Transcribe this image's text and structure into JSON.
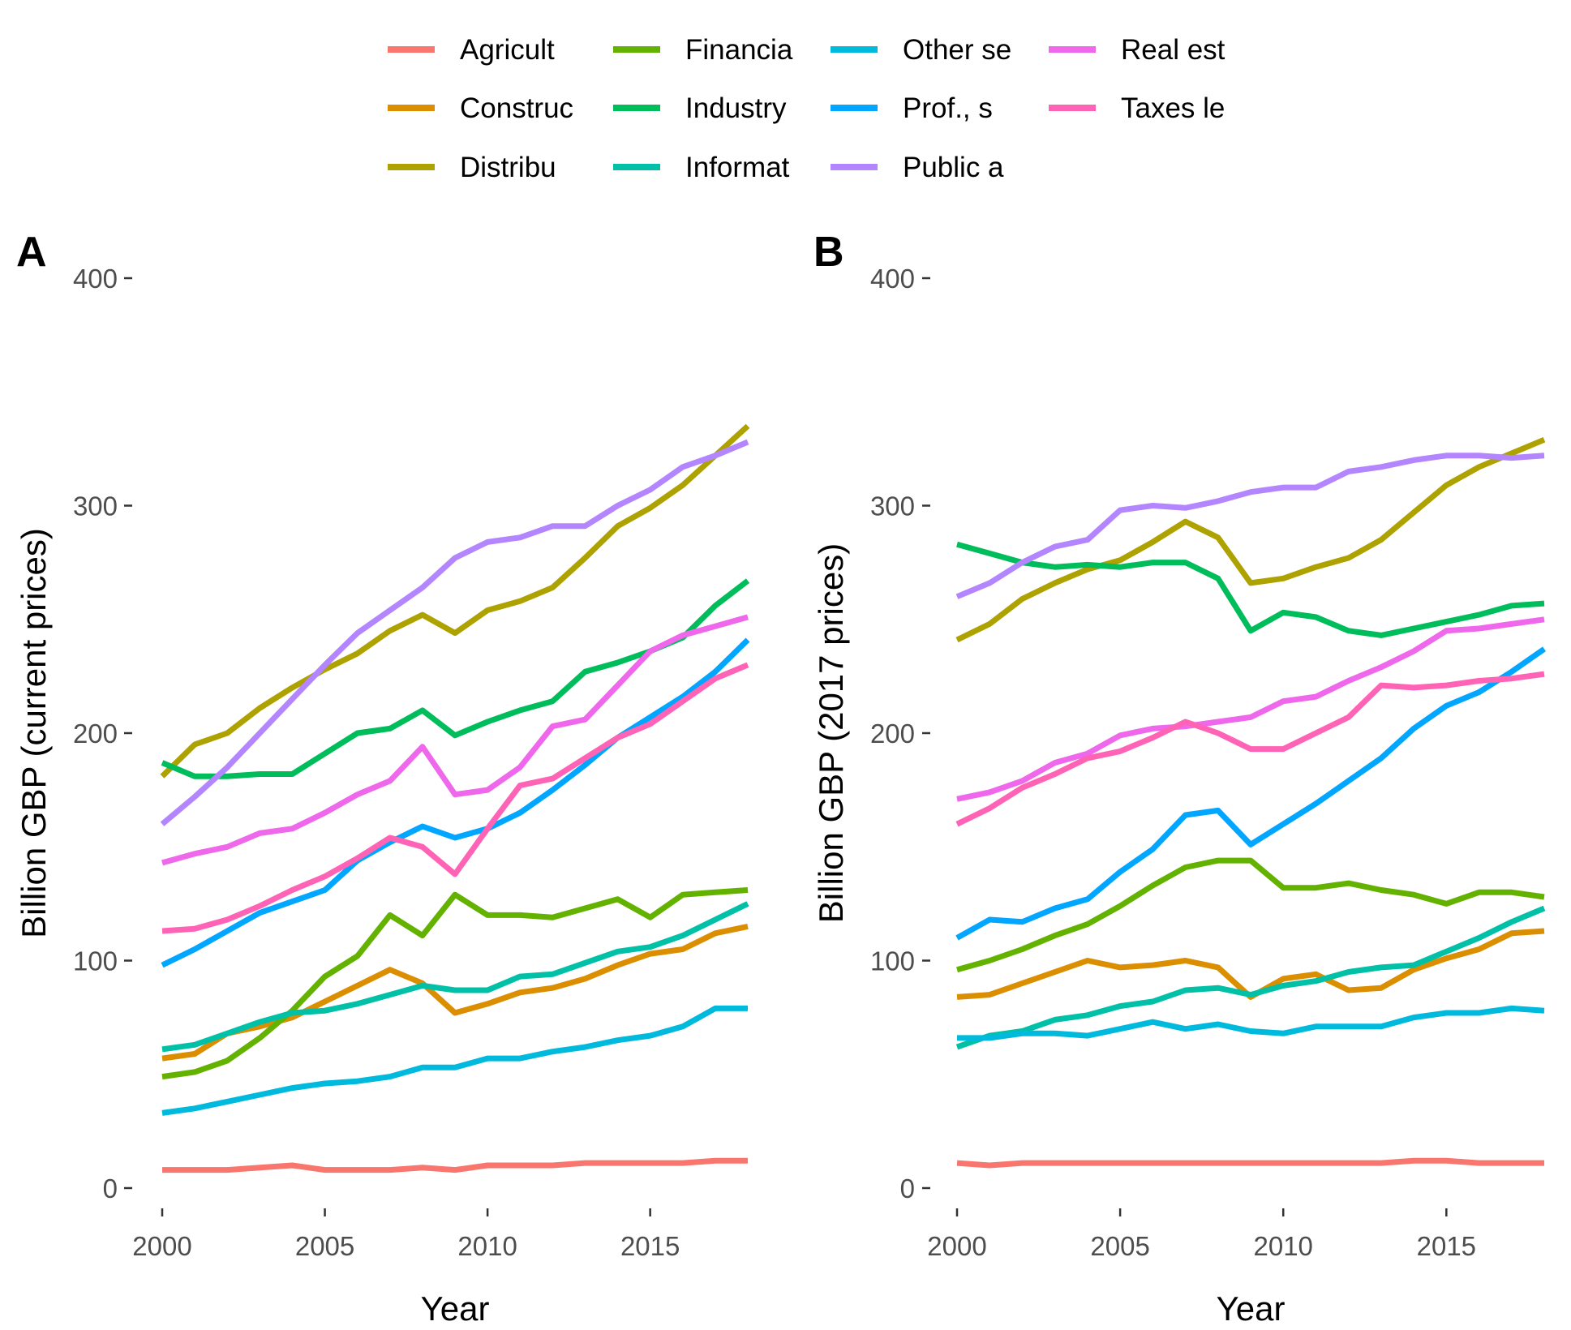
{
  "legend": {
    "placement": "top",
    "entries": [
      {
        "label": "Agricult",
        "color": "#F8766D"
      },
      {
        "label": "Construc",
        "color": "#DB8E00"
      },
      {
        "label": "Distribu",
        "color": "#AEA200"
      },
      {
        "label": "Financia",
        "color": "#64B200"
      },
      {
        "label": "Industry",
        "color": "#00BD5C"
      },
      {
        "label": "Informat",
        "color": "#00C1A7"
      },
      {
        "label": "Other se",
        "color": "#00BADE"
      },
      {
        "label": "Prof., s",
        "color": "#00A6FF"
      },
      {
        "label": "Public a",
        "color": "#B385FF"
      },
      {
        "label": "Real est",
        "color": "#EF67EB"
      },
      {
        "label": "Taxes le",
        "color": "#FF63B6"
      }
    ]
  },
  "chart_data": [
    {
      "type": "line",
      "panel": "A",
      "xlabel": "Year",
      "ylabel": "Billion GBP (current prices)",
      "xlim": [
        2000,
        2018
      ],
      "ylim": [
        0,
        400
      ],
      "xticks": [
        2000,
        2005,
        2010,
        2015
      ],
      "yticks": [
        0,
        100,
        200,
        300,
        400
      ],
      "grid": false,
      "x": [
        2000,
        2001,
        2002,
        2003,
        2004,
        2005,
        2006,
        2007,
        2008,
        2009,
        2010,
        2011,
        2012,
        2013,
        2014,
        2015,
        2016,
        2017,
        2018
      ],
      "series": [
        {
          "name": "Agricult",
          "values": [
            8,
            8,
            8,
            9,
            10,
            8,
            8,
            8,
            9,
            8,
            10,
            10,
            10,
            11,
            11,
            11,
            11,
            12,
            12
          ]
        },
        {
          "name": "Construc",
          "values": [
            57,
            59,
            68,
            71,
            75,
            82,
            89,
            96,
            90,
            77,
            81,
            86,
            88,
            92,
            98,
            103,
            105,
            112,
            115
          ]
        },
        {
          "name": "Distribu",
          "values": [
            181,
            195,
            200,
            211,
            220,
            228,
            235,
            245,
            252,
            244,
            254,
            258,
            264,
            277,
            291,
            299,
            309,
            322,
            335
          ]
        },
        {
          "name": "Financia",
          "values": [
            49,
            51,
            56,
            66,
            78,
            93,
            102,
            120,
            111,
            129,
            120,
            120,
            119,
            123,
            127,
            119,
            129,
            130,
            131
          ]
        },
        {
          "name": "Industry",
          "values": [
            187,
            181,
            181,
            182,
            182,
            191,
            200,
            202,
            210,
            199,
            205,
            210,
            214,
            227,
            231,
            236,
            242,
            256,
            267
          ]
        },
        {
          "name": "Informat",
          "values": [
            61,
            63,
            68,
            73,
            77,
            78,
            81,
            85,
            89,
            87,
            87,
            93,
            94,
            99,
            104,
            106,
            111,
            118,
            125
          ]
        },
        {
          "name": "Other se",
          "values": [
            33,
            35,
            38,
            41,
            44,
            46,
            47,
            49,
            53,
            53,
            57,
            57,
            60,
            62,
            65,
            67,
            71,
            79,
            79
          ]
        },
        {
          "name": "Prof., s",
          "values": [
            98,
            105,
            113,
            121,
            126,
            131,
            144,
            152,
            159,
            154,
            158,
            165,
            175,
            186,
            198,
            207,
            216,
            227,
            241
          ]
        },
        {
          "name": "Public a",
          "values": [
            160,
            172,
            185,
            200,
            215,
            230,
            244,
            254,
            264,
            277,
            284,
            286,
            291,
            291,
            300,
            307,
            317,
            322,
            328
          ]
        },
        {
          "name": "Real est",
          "values": [
            143,
            147,
            150,
            156,
            158,
            165,
            173,
            179,
            194,
            173,
            175,
            185,
            203,
            206,
            221,
            236,
            243,
            247,
            251
          ]
        },
        {
          "name": "Taxes le",
          "values": [
            113,
            114,
            118,
            124,
            131,
            137,
            145,
            154,
            150,
            138,
            158,
            177,
            180,
            189,
            198,
            204,
            214,
            224,
            230
          ]
        }
      ]
    },
    {
      "type": "line",
      "panel": "B",
      "xlabel": "Year",
      "ylabel": "Billion GBP (2017 prices)",
      "xlim": [
        2000,
        2018
      ],
      "ylim": [
        0,
        400
      ],
      "xticks": [
        2000,
        2005,
        2010,
        2015
      ],
      "yticks": [
        0,
        100,
        200,
        300,
        400
      ],
      "grid": false,
      "x": [
        2000,
        2001,
        2002,
        2003,
        2004,
        2005,
        2006,
        2007,
        2008,
        2009,
        2010,
        2011,
        2012,
        2013,
        2014,
        2015,
        2016,
        2017,
        2018
      ],
      "series": [
        {
          "name": "Agricult",
          "values": [
            11,
            10,
            11,
            11,
            11,
            11,
            11,
            11,
            11,
            11,
            11,
            11,
            11,
            11,
            12,
            12,
            11,
            11,
            11
          ]
        },
        {
          "name": "Construc",
          "values": [
            84,
            85,
            90,
            95,
            100,
            97,
            98,
            100,
            97,
            84,
            92,
            94,
            87,
            88,
            96,
            101,
            105,
            112,
            113
          ]
        },
        {
          "name": "Distribu",
          "values": [
            241,
            248,
            259,
            266,
            272,
            276,
            284,
            293,
            286,
            266,
            268,
            273,
            277,
            285,
            297,
            309,
            317,
            323,
            329
          ]
        },
        {
          "name": "Financia",
          "values": [
            96,
            100,
            105,
            111,
            116,
            124,
            133,
            141,
            144,
            144,
            132,
            132,
            134,
            131,
            129,
            125,
            130,
            130,
            128
          ]
        },
        {
          "name": "Industry",
          "values": [
            283,
            279,
            275,
            273,
            274,
            273,
            275,
            275,
            268,
            245,
            253,
            251,
            245,
            243,
            246,
            249,
            252,
            256,
            257
          ]
        },
        {
          "name": "Informat",
          "values": [
            62,
            67,
            69,
            74,
            76,
            80,
            82,
            87,
            88,
            85,
            89,
            91,
            95,
            97,
            98,
            104,
            110,
            117,
            123
          ]
        },
        {
          "name": "Other se",
          "values": [
            66,
            66,
            68,
            68,
            67,
            70,
            73,
            70,
            72,
            69,
            68,
            71,
            71,
            71,
            75,
            77,
            77,
            79,
            78
          ]
        },
        {
          "name": "Prof., s",
          "values": [
            110,
            118,
            117,
            123,
            127,
            139,
            149,
            164,
            166,
            151,
            160,
            169,
            179,
            189,
            202,
            212,
            218,
            227,
            237
          ]
        },
        {
          "name": "Public a",
          "values": [
            260,
            266,
            275,
            282,
            285,
            298,
            300,
            299,
            302,
            306,
            308,
            308,
            315,
            317,
            320,
            322,
            322,
            321,
            322
          ]
        },
        {
          "name": "Real est",
          "values": [
            171,
            174,
            179,
            187,
            191,
            199,
            202,
            203,
            205,
            207,
            214,
            216,
            223,
            229,
            236,
            245,
            246,
            248,
            250
          ]
        },
        {
          "name": "Taxes le",
          "values": [
            160,
            167,
            176,
            182,
            189,
            192,
            198,
            205,
            200,
            193,
            193,
            200,
            207,
            221,
            220,
            221,
            223,
            224,
            226
          ]
        }
      ]
    }
  ]
}
